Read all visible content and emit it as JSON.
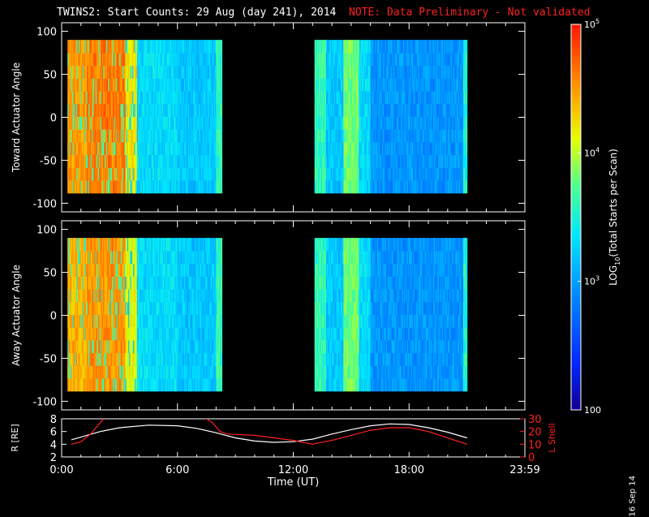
{
  "title": {
    "main": "TWINS2: Start Counts: 29 Aug (day 241), 2014",
    "note": "NOTE: Data Preliminary - Not validated"
  },
  "date_stamp": "16 Sep 14",
  "colors": {
    "background": "#000000",
    "axes": "#ffffff",
    "note": "#ff2020",
    "r_line": "#ffffff",
    "lshell_line": "#ff2020"
  },
  "chart_data": [
    {
      "type": "heatmap",
      "name": "toward",
      "ylabel": "Toward Actuator Angle",
      "ylim": [
        -110,
        110
      ],
      "yticks": [
        "100",
        "50",
        "0",
        "-50",
        "-100"
      ],
      "ytick_values": [
        100,
        50,
        0,
        -50,
        -100
      ],
      "xlim_hours": [
        0,
        24
      ],
      "data_blocks": [
        {
          "start_h": 0.3,
          "end_h": 8.3,
          "angle_min": -88,
          "angle_max": 90
        },
        {
          "start_h": 13.1,
          "end_h": 21.0,
          "angle_min": -88,
          "angle_max": 90
        }
      ],
      "bands_log": [
        {
          "start_h": 0.3,
          "end_h": 1.3,
          "v": 4.5
        },
        {
          "start_h": 1.3,
          "end_h": 3.3,
          "v": 4.6
        },
        {
          "start_h": 3.3,
          "end_h": 3.9,
          "v": 4.2
        },
        {
          "start_h": 3.9,
          "end_h": 6.0,
          "v": 3.3
        },
        {
          "start_h": 6.0,
          "end_h": 8.0,
          "v": 3.2
        },
        {
          "start_h": 8.0,
          "end_h": 8.3,
          "v": 3.6
        },
        {
          "start_h": 13.1,
          "end_h": 13.7,
          "v": 3.6
        },
        {
          "start_h": 13.7,
          "end_h": 14.6,
          "v": 3.2
        },
        {
          "start_h": 14.6,
          "end_h": 15.4,
          "v": 3.8
        },
        {
          "start_h": 15.4,
          "end_h": 16.0,
          "v": 3.3
        },
        {
          "start_h": 16.0,
          "end_h": 20.8,
          "v": 2.95
        },
        {
          "start_h": 20.8,
          "end_h": 21.0,
          "v": 3.5
        }
      ]
    },
    {
      "type": "heatmap",
      "name": "away",
      "ylabel": "Away Actuator Angle",
      "ylim": [
        -110,
        110
      ],
      "yticks": [
        "100",
        "50",
        "0",
        "-50",
        "-100"
      ],
      "ytick_values": [
        100,
        50,
        0,
        -50,
        -100
      ],
      "xlim_hours": [
        0,
        24
      ],
      "data_blocks": [
        {
          "start_h": 0.3,
          "end_h": 8.3,
          "angle_min": -88,
          "angle_max": 90
        },
        {
          "start_h": 13.1,
          "end_h": 21.0,
          "angle_min": -88,
          "angle_max": 90
        }
      ],
      "bands_log": [
        {
          "start_h": 0.3,
          "end_h": 1.3,
          "v": 4.4
        },
        {
          "start_h": 1.3,
          "end_h": 3.3,
          "v": 4.5
        },
        {
          "start_h": 3.3,
          "end_h": 3.9,
          "v": 4.1
        },
        {
          "start_h": 3.9,
          "end_h": 6.0,
          "v": 3.3
        },
        {
          "start_h": 6.0,
          "end_h": 8.0,
          "v": 3.2
        },
        {
          "start_h": 8.0,
          "end_h": 8.3,
          "v": 3.6
        },
        {
          "start_h": 13.1,
          "end_h": 13.7,
          "v": 3.6
        },
        {
          "start_h": 13.7,
          "end_h": 14.6,
          "v": 3.2
        },
        {
          "start_h": 14.6,
          "end_h": 15.4,
          "v": 3.8
        },
        {
          "start_h": 15.4,
          "end_h": 16.0,
          "v": 3.3
        },
        {
          "start_h": 16.0,
          "end_h": 20.8,
          "v": 2.95
        },
        {
          "start_h": 20.8,
          "end_h": 21.0,
          "v": 3.5
        }
      ]
    },
    {
      "type": "line",
      "name": "orbit",
      "ylabel_left": "R [RE]",
      "ylabel_right": "L Shell",
      "ylim_left": [
        2,
        8
      ],
      "yticks_left": [
        "8",
        "6",
        "4",
        "2"
      ],
      "ylim_right": [
        0,
        30
      ],
      "yticks_right": [
        "30",
        "20",
        "10",
        "0"
      ],
      "xlim_hours": [
        0,
        24
      ],
      "xticks": [
        "0:00",
        "6:00",
        "12:00",
        "18:00",
        "23:59"
      ],
      "xtick_hours": [
        0,
        6,
        12,
        18,
        24
      ],
      "xlabel": "Time (UT)",
      "series": [
        {
          "name": "R",
          "color": "#ffffff",
          "x": [
            0.5,
            2,
            3,
            4.5,
            6,
            7,
            8,
            9,
            10,
            11,
            12,
            13,
            14,
            15,
            16,
            17,
            18,
            19,
            20,
            21
          ],
          "y": [
            4.7,
            6.0,
            6.6,
            7.0,
            6.9,
            6.5,
            5.8,
            5.0,
            4.5,
            4.3,
            4.4,
            4.8,
            5.6,
            6.3,
            6.9,
            7.2,
            7.1,
            6.6,
            5.9,
            5.0
          ]
        },
        {
          "name": "L Shell",
          "color": "#ff2020",
          "x": [
            0.5,
            1,
            1.5,
            2,
            2.3,
            7.3,
            7.8,
            8.2,
            8.6,
            10,
            11,
            12,
            13,
            14,
            15,
            16,
            17,
            18,
            19,
            20,
            21
          ],
          "y": [
            10,
            12,
            18,
            27,
            32,
            32,
            27,
            20,
            18,
            17,
            15,
            13,
            10,
            13,
            17,
            21,
            23,
            23,
            20,
            15,
            10
          ]
        }
      ]
    }
  ],
  "colorbar": {
    "label": "LOG10(Total Starts per Scan)",
    "label_main": "LOG",
    "label_sub": "10",
    "label_rest": "(Total Starts per Scan)",
    "range_log": [
      2,
      5
    ],
    "tick_labels": [
      "10^5",
      "10^4",
      "10^3",
      "100"
    ],
    "tick_values_log": [
      5,
      4,
      3,
      2
    ],
    "ticks": [
      {
        "base": "10",
        "exp": "5"
      },
      {
        "base": "10",
        "exp": "4"
      },
      {
        "base": "10",
        "exp": "3"
      },
      {
        "base": "100",
        "exp": ""
      }
    ]
  }
}
